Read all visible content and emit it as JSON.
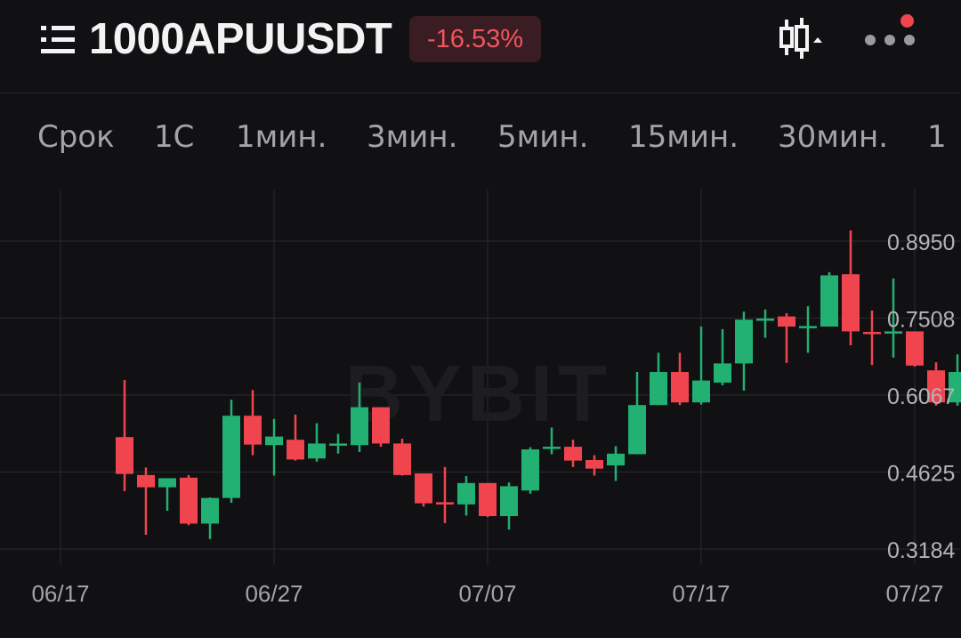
{
  "header": {
    "symbol": "1000APUUSDT",
    "change": "-16.53%",
    "menu_icon": "list-menu-icon",
    "chart_type_icon": "candlestick-icon",
    "more_icon": "more-dots-icon",
    "change_color": "#f0555f"
  },
  "intervals": [
    "Срок",
    "1С",
    "1мин.",
    "3мин.",
    "5мин.",
    "15мин.",
    "30мин.",
    "1"
  ],
  "watermark": "BYBIT",
  "colors": {
    "up": "#22b073",
    "down": "#f0454f",
    "grid": "#2a2a2e",
    "text": "#a4a4a8"
  },
  "chart_data": {
    "type": "candlestick",
    "y_ticks": [
      "0.8950",
      "0.7508",
      "0.6067",
      "0.4625",
      "0.3184"
    ],
    "y_tick_values": [
      0.895,
      0.7508,
      0.6067,
      0.4625,
      0.3184
    ],
    "x_ticks": [
      "06/17",
      "06/27",
      "07/07",
      "07/17",
      "07/27"
    ],
    "x_tick_values": [
      "2024-06-17",
      "2024-06-27",
      "2024-07-07",
      "2024-07-17",
      "2024-07-27"
    ],
    "candles": [
      {
        "date": "2024-06-20",
        "o": 0.528,
        "h": 0.635,
        "l": 0.427,
        "c": 0.459
      },
      {
        "date": "2024-06-21",
        "o": 0.457,
        "h": 0.471,
        "l": 0.345,
        "c": 0.434
      },
      {
        "date": "2024-06-22",
        "o": 0.434,
        "h": 0.451,
        "l": 0.39,
        "c": 0.451
      },
      {
        "date": "2024-06-23",
        "o": 0.452,
        "h": 0.457,
        "l": 0.363,
        "c": 0.366
      },
      {
        "date": "2024-06-24",
        "o": 0.366,
        "h": 0.415,
        "l": 0.337,
        "c": 0.414
      },
      {
        "date": "2024-06-25",
        "o": 0.414,
        "h": 0.598,
        "l": 0.405,
        "c": 0.568
      },
      {
        "date": "2024-06-26",
        "o": 0.568,
        "h": 0.616,
        "l": 0.494,
        "c": 0.514
      },
      {
        "date": "2024-06-27",
        "o": 0.513,
        "h": 0.562,
        "l": 0.456,
        "c": 0.529
      },
      {
        "date": "2024-06-28",
        "o": 0.523,
        "h": 0.57,
        "l": 0.484,
        "c": 0.486
      },
      {
        "date": "2024-06-29",
        "o": 0.488,
        "h": 0.554,
        "l": 0.482,
        "c": 0.516
      },
      {
        "date": "2024-06-30",
        "o": 0.516,
        "h": 0.534,
        "l": 0.497,
        "c": 0.516
      },
      {
        "date": "2024-07-01",
        "o": 0.513,
        "h": 0.63,
        "l": 0.5,
        "c": 0.584
      },
      {
        "date": "2024-07-02",
        "o": 0.584,
        "h": 0.584,
        "l": 0.51,
        "c": 0.516
      },
      {
        "date": "2024-07-03",
        "o": 0.516,
        "h": 0.525,
        "l": 0.456,
        "c": 0.457
      },
      {
        "date": "2024-07-04",
        "o": 0.46,
        "h": 0.46,
        "l": 0.398,
        "c": 0.404
      },
      {
        "date": "2024-07-05",
        "o": 0.406,
        "h": 0.472,
        "l": 0.367,
        "c": 0.404
      },
      {
        "date": "2024-07-06",
        "o": 0.402,
        "h": 0.455,
        "l": 0.381,
        "c": 0.442
      },
      {
        "date": "2024-07-07",
        "o": 0.442,
        "h": 0.442,
        "l": 0.378,
        "c": 0.38
      },
      {
        "date": "2024-07-08",
        "o": 0.38,
        "h": 0.443,
        "l": 0.355,
        "c": 0.436
      },
      {
        "date": "2024-07-09",
        "o": 0.428,
        "h": 0.509,
        "l": 0.422,
        "c": 0.505
      },
      {
        "date": "2024-07-10",
        "o": 0.508,
        "h": 0.546,
        "l": 0.496,
        "c": 0.51
      },
      {
        "date": "2024-07-11",
        "o": 0.51,
        "h": 0.523,
        "l": 0.472,
        "c": 0.484
      },
      {
        "date": "2024-07-12",
        "o": 0.485,
        "h": 0.494,
        "l": 0.456,
        "c": 0.469
      },
      {
        "date": "2024-07-13",
        "o": 0.475,
        "h": 0.511,
        "l": 0.446,
        "c": 0.497
      },
      {
        "date": "2024-07-14",
        "o": 0.496,
        "h": 0.65,
        "l": 0.496,
        "c": 0.588
      },
      {
        "date": "2024-07-15",
        "o": 0.588,
        "h": 0.686,
        "l": 0.588,
        "c": 0.65
      },
      {
        "date": "2024-07-16",
        "o": 0.65,
        "h": 0.686,
        "l": 0.588,
        "c": 0.593
      },
      {
        "date": "2024-07-17",
        "o": 0.593,
        "h": 0.735,
        "l": 0.589,
        "c": 0.634
      },
      {
        "date": "2024-07-18",
        "o": 0.63,
        "h": 0.73,
        "l": 0.625,
        "c": 0.666
      },
      {
        "date": "2024-07-19",
        "o": 0.666,
        "h": 0.763,
        "l": 0.615,
        "c": 0.748
      },
      {
        "date": "2024-07-20",
        "o": 0.748,
        "h": 0.767,
        "l": 0.714,
        "c": 0.75
      },
      {
        "date": "2024-07-21",
        "o": 0.754,
        "h": 0.76,
        "l": 0.667,
        "c": 0.735
      },
      {
        "date": "2024-07-22",
        "o": 0.735,
        "h": 0.773,
        "l": 0.686,
        "c": 0.736
      },
      {
        "date": "2024-07-23",
        "o": 0.735,
        "h": 0.837,
        "l": 0.735,
        "c": 0.831
      },
      {
        "date": "2024-07-24",
        "o": 0.833,
        "h": 0.915,
        "l": 0.7,
        "c": 0.726
      },
      {
        "date": "2024-07-25",
        "o": 0.725,
        "h": 0.765,
        "l": 0.663,
        "c": 0.722
      },
      {
        "date": "2024-07-26",
        "o": 0.723,
        "h": 0.825,
        "l": 0.677,
        "c": 0.726
      },
      {
        "date": "2024-07-27",
        "o": 0.726,
        "h": 0.726,
        "l": 0.66,
        "c": 0.662
      },
      {
        "date": "2024-07-28",
        "o": 0.653,
        "h": 0.668,
        "l": 0.587,
        "c": 0.593
      },
      {
        "date": "2024-07-29",
        "o": 0.593,
        "h": 0.683,
        "l": 0.587,
        "c": 0.65
      }
    ]
  }
}
